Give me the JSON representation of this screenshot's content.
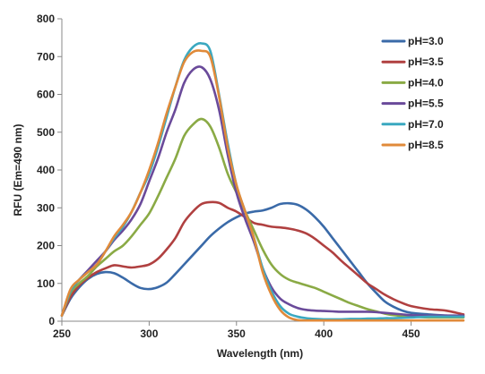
{
  "chart_data": {
    "type": "line",
    "title": "",
    "xlabel": "Wavelength  (nm)",
    "ylabel": "RFU (Em=490 nm)",
    "xlim": [
      250,
      480
    ],
    "ylim": [
      0,
      800
    ],
    "xticks": [
      250,
      300,
      350,
      400,
      450
    ],
    "yticks": [
      0,
      100,
      200,
      300,
      400,
      500,
      600,
      700,
      800
    ],
    "grid": false,
    "legend_position": "right",
    "series": [
      {
        "name": "pH=3.0",
        "color": "#3a6aa8",
        "x": [
          250,
          255,
          260,
          265,
          270,
          275,
          280,
          285,
          290,
          295,
          300,
          305,
          310,
          315,
          320,
          325,
          330,
          335,
          340,
          345,
          350,
          355,
          360,
          365,
          370,
          375,
          380,
          385,
          390,
          395,
          400,
          405,
          410,
          415,
          420,
          425,
          430,
          435,
          440,
          445,
          450,
          460,
          470,
          480
        ],
        "y": [
          15,
          60,
          90,
          112,
          125,
          130,
          127,
          115,
          100,
          88,
          85,
          90,
          102,
          125,
          150,
          175,
          200,
          225,
          245,
          262,
          275,
          285,
          290,
          293,
          300,
          310,
          312,
          308,
          295,
          275,
          250,
          220,
          190,
          160,
          130,
          100,
          75,
          52,
          38,
          28,
          22,
          18,
          15,
          12
        ]
      },
      {
        "name": "pH=3.5",
        "color": "#b04040",
        "x": [
          250,
          255,
          260,
          265,
          270,
          275,
          280,
          285,
          290,
          295,
          300,
          305,
          310,
          315,
          320,
          325,
          330,
          335,
          340,
          345,
          350,
          355,
          360,
          365,
          370,
          375,
          380,
          385,
          390,
          395,
          400,
          405,
          410,
          415,
          420,
          425,
          430,
          435,
          440,
          445,
          450,
          460,
          470,
          480
        ],
        "y": [
          15,
          65,
          95,
          115,
          130,
          140,
          148,
          145,
          142,
          145,
          150,
          165,
          190,
          220,
          262,
          290,
          310,
          315,
          313,
          300,
          290,
          275,
          260,
          255,
          250,
          248,
          245,
          240,
          232,
          218,
          200,
          182,
          160,
          140,
          120,
          100,
          85,
          70,
          58,
          48,
          40,
          32,
          28,
          18
        ]
      },
      {
        "name": "pH=4.0",
        "color": "#8aaa45",
        "x": [
          250,
          255,
          260,
          265,
          270,
          275,
          280,
          285,
          290,
          295,
          300,
          305,
          310,
          315,
          320,
          325,
          330,
          335,
          340,
          345,
          350,
          355,
          360,
          365,
          370,
          375,
          380,
          385,
          390,
          395,
          400,
          405,
          410,
          415,
          420,
          425,
          430,
          435,
          440,
          445,
          450,
          460,
          470,
          480
        ],
        "y": [
          15,
          75,
          100,
          120,
          145,
          165,
          185,
          200,
          225,
          255,
          285,
          330,
          380,
          430,
          490,
          520,
          535,
          515,
          460,
          390,
          340,
          290,
          240,
          190,
          150,
          125,
          110,
          102,
          95,
          88,
          78,
          68,
          58,
          48,
          40,
          32,
          26,
          20,
          16,
          14,
          12,
          10,
          10,
          10
        ]
      },
      {
        "name": "pH=5.5",
        "color": "#6a4a9a",
        "x": [
          250,
          255,
          260,
          265,
          270,
          275,
          280,
          285,
          290,
          295,
          300,
          305,
          310,
          315,
          320,
          325,
          330,
          335,
          340,
          345,
          350,
          355,
          360,
          365,
          370,
          375,
          380,
          385,
          390,
          395,
          400,
          405,
          410,
          415,
          420,
          425,
          430,
          435,
          440,
          445,
          450,
          460,
          470,
          480
        ],
        "y": [
          15,
          80,
          110,
          135,
          160,
          185,
          215,
          240,
          270,
          310,
          370,
          430,
          500,
          560,
          630,
          665,
          672,
          640,
          560,
          440,
          340,
          270,
          210,
          140,
          90,
          60,
          45,
          35,
          30,
          28,
          27,
          26,
          25,
          25,
          25,
          25,
          24,
          22,
          20,
          18,
          16,
          15,
          15,
          15
        ]
      },
      {
        "name": "pH=7.0",
        "color": "#3aa8c0",
        "x": [
          250,
          255,
          260,
          265,
          270,
          275,
          280,
          285,
          290,
          295,
          300,
          305,
          310,
          315,
          320,
          325,
          330,
          335,
          340,
          345,
          350,
          355,
          360,
          365,
          370,
          375,
          380,
          385,
          390,
          395,
          400,
          405,
          410,
          415,
          420,
          425,
          430,
          435,
          440,
          445,
          450,
          460,
          470,
          480
        ],
        "y": [
          15,
          80,
          110,
          130,
          150,
          185,
          220,
          250,
          290,
          340,
          390,
          460,
          540,
          620,
          690,
          725,
          735,
          715,
          600,
          470,
          360,
          290,
          220,
          140,
          80,
          40,
          20,
          12,
          8,
          6,
          5,
          5,
          5,
          6,
          6,
          7,
          7,
          8,
          8,
          9,
          10,
          12,
          12,
          12
        ]
      },
      {
        "name": "pH=8.5",
        "color": "#e08a3a",
        "x": [
          250,
          255,
          260,
          265,
          270,
          275,
          280,
          285,
          290,
          295,
          300,
          305,
          310,
          315,
          320,
          325,
          330,
          335,
          340,
          345,
          350,
          355,
          360,
          365,
          370,
          375,
          380,
          385,
          390,
          395,
          400,
          405,
          410,
          415,
          420,
          425,
          430,
          435,
          440,
          445,
          450,
          460,
          470,
          480
        ],
        "y": [
          15,
          85,
          110,
          130,
          150,
          185,
          225,
          255,
          290,
          340,
          400,
          470,
          550,
          620,
          685,
          712,
          715,
          700,
          595,
          460,
          360,
          290,
          220,
          130,
          70,
          30,
          10,
          3,
          2,
          2,
          2,
          2,
          2,
          2,
          2,
          2,
          2,
          2,
          2,
          2,
          2,
          2,
          2,
          2
        ]
      }
    ]
  }
}
